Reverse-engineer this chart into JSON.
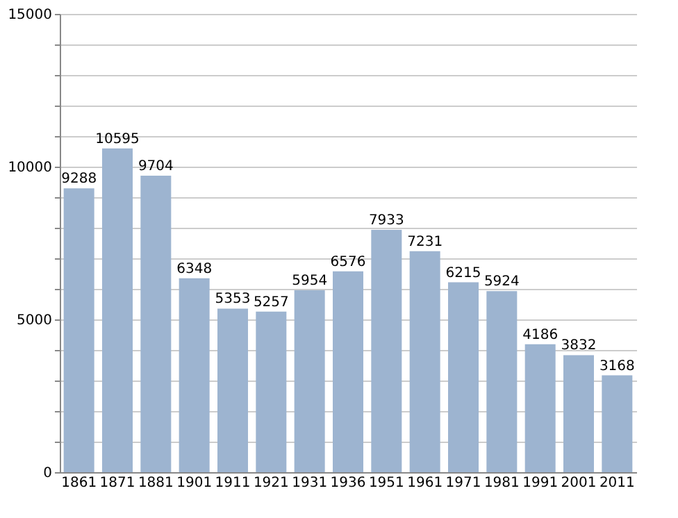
{
  "chart_data": {
    "type": "bar",
    "categories": [
      "1861",
      "1871",
      "1881",
      "1901",
      "1911",
      "1921",
      "1931",
      "1936",
      "1951",
      "1961",
      "1971",
      "1981",
      "1991",
      "2001",
      "2011"
    ],
    "values": [
      9288,
      10595,
      9704,
      6348,
      5353,
      5257,
      5954,
      6576,
      7933,
      7231,
      6215,
      5924,
      4186,
      3832,
      3168
    ],
    "color": "#9db4d0",
    "ylim": [
      0,
      15000
    ],
    "yticks": [
      0,
      {
        "value": 1000,
        "label": null
      },
      {
        "value": 2000,
        "label": null
      },
      {
        "value": 3000,
        "label": null
      },
      {
        "value": 4000,
        "label": null
      },
      5000,
      {
        "value": 6000,
        "label": null
      },
      {
        "value": 7000,
        "label": null
      },
      {
        "value": 8000,
        "label": null
      },
      {
        "value": 9000,
        "label": null
      },
      10000,
      {
        "value": 11000,
        "label": null
      },
      {
        "value": 12000,
        "label": null
      },
      {
        "value": 13000,
        "label": null
      },
      {
        "value": 14000,
        "label": null
      },
      15000
    ],
    "grid": "y",
    "data_labels": true
  }
}
